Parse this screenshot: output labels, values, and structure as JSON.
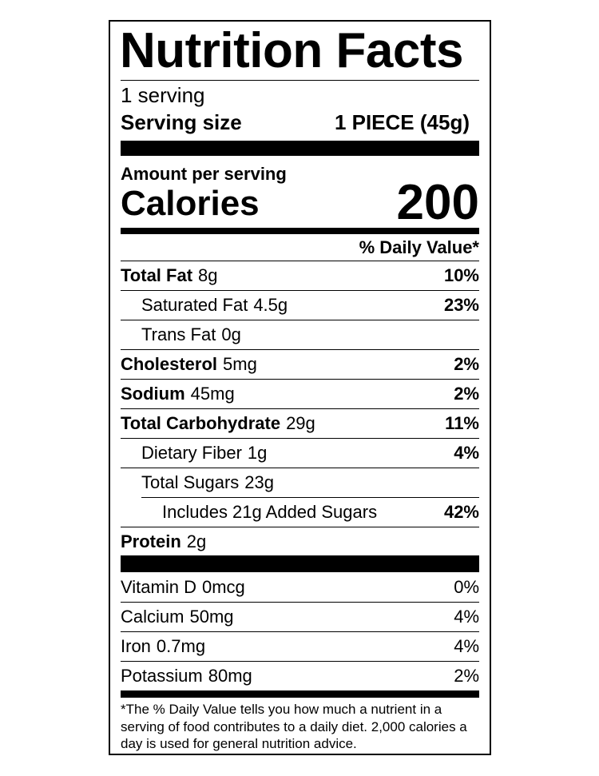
{
  "header": {
    "title": "Nutrition Facts",
    "servings": "1 serving",
    "serving_size_label": "Serving size",
    "serving_size_value": "1 PIECE (45g)"
  },
  "calories": {
    "amount_label": "Amount per serving",
    "label": "Calories",
    "value": "200"
  },
  "daily_value_header": "% Daily Value*",
  "nutrients": [
    {
      "name": "Total Fat",
      "amount": "8g",
      "dv": "10%",
      "bold": true,
      "indent": 0
    },
    {
      "name": "Saturated Fat",
      "amount": "4.5g",
      "dv": "23%",
      "bold": false,
      "indent": 1
    },
    {
      "name": "Trans Fat",
      "amount": "0g",
      "bold": false,
      "indent": 1
    },
    {
      "name": "Cholesterol",
      "amount": "5mg",
      "dv": "2%",
      "bold": true,
      "indent": 0
    },
    {
      "name": "Sodium",
      "amount": "45mg",
      "dv": "2%",
      "bold": true,
      "indent": 0
    },
    {
      "name": "Total Carbohydrate",
      "amount": "29g",
      "dv": "11%",
      "bold": true,
      "indent": 0
    },
    {
      "name": "Dietary Fiber",
      "amount": "1g",
      "dv": "4%",
      "bold": false,
      "indent": 1
    },
    {
      "name": "Total Sugars",
      "amount": "23g",
      "bold": false,
      "indent": 1
    },
    {
      "name": "Includes 21g Added Sugars",
      "dv": "42%",
      "bold": false,
      "indent": 2
    },
    {
      "name": "Protein",
      "amount": "2g",
      "bold": true,
      "indent": 0
    }
  ],
  "vitamins": [
    {
      "name": "Vitamin D",
      "amount": "0mcg",
      "dv": "0%"
    },
    {
      "name": "Calcium",
      "amount": "50mg",
      "dv": "4%"
    },
    {
      "name": "Iron",
      "amount": "0.7mg",
      "dv": "4%"
    },
    {
      "name": "Potassium",
      "amount": "80mg",
      "dv": "2%"
    }
  ],
  "footnote": {
    "lines": [
      "*The % Daily Value tells you how much a nutrient in a",
      "serving of food contributes to a daily diet. 2,000 calories a",
      "day is used for general nutrition advice."
    ]
  }
}
